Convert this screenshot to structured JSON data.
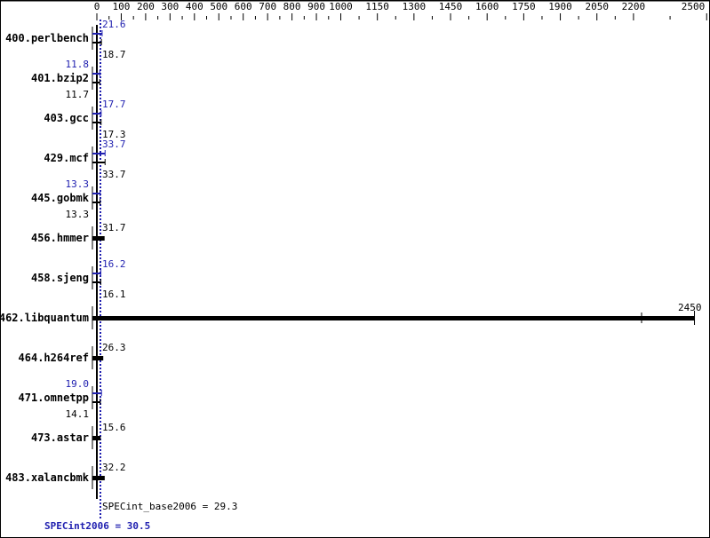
{
  "chart_data": {
    "type": "bar",
    "orientation": "horizontal",
    "x_ticks": [
      0,
      100,
      200,
      300,
      400,
      500,
      600,
      700,
      800,
      900,
      1000,
      1150,
      1300,
      1450,
      1600,
      1750,
      1900,
      2050,
      2200,
      2500
    ],
    "xlim": [
      0,
      2500
    ],
    "categories": [
      "400.perlbench",
      "401.bzip2",
      "403.gcc",
      "429.mcf",
      "445.gobmk",
      "456.hmmer",
      "458.sjeng",
      "462.libquantum",
      "464.h264ref",
      "471.omnetpp",
      "473.astar",
      "483.xalancbmk"
    ],
    "series": [
      {
        "key": "peak",
        "color": "#2020b0",
        "values": [
          21.6,
          11.8,
          17.7,
          33.7,
          13.3,
          null,
          16.2,
          null,
          null,
          19.0,
          null,
          null
        ]
      },
      {
        "key": "base",
        "color": "#000000",
        "values": [
          18.7,
          11.7,
          17.3,
          33.7,
          13.3,
          31.7,
          16.1,
          2450,
          26.3,
          14.1,
          15.6,
          32.2
        ]
      }
    ],
    "summary": {
      "base_label": "SPECint_base2006 = 29.3",
      "base_value": 29.3,
      "peak_label": "SPECint2006 = 30.5",
      "peak_value": 30.5
    },
    "grid": false
  }
}
